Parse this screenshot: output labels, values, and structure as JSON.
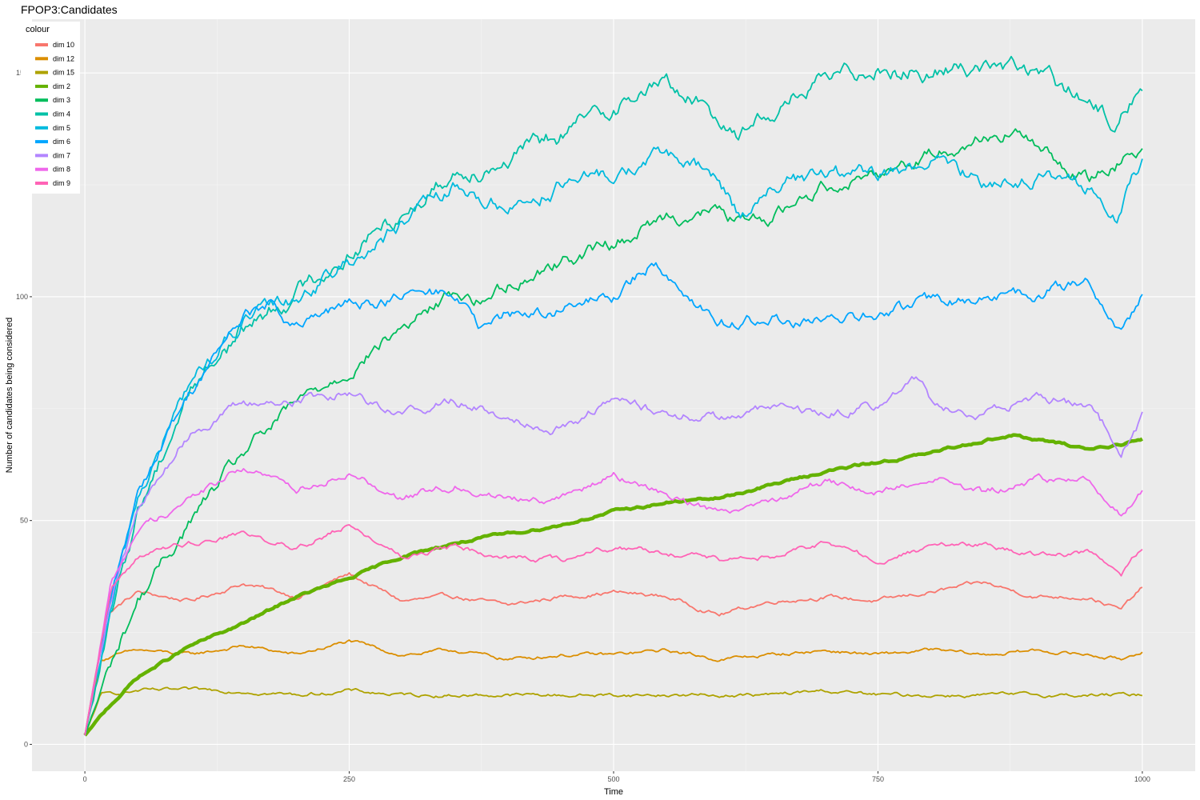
{
  "chart_data": {
    "type": "line",
    "title": "FPOP3:Candidates",
    "xlabel": "Time",
    "ylabel": "Number of candidates being considered",
    "xlim": [
      -50,
      1050
    ],
    "ylim": [
      -6,
      162
    ],
    "x_ticks": [
      0,
      250,
      500,
      750,
      1000
    ],
    "x_tick_labels": [
      "0",
      "250",
      "500",
      "750",
      "1000"
    ],
    "y_ticks": [
      0,
      50,
      100,
      150
    ],
    "y_tick_labels": [
      "0",
      "50",
      "100",
      "150"
    ],
    "grid": true,
    "legend": {
      "title": "colour",
      "position": "top-left"
    },
    "series": [
      {
        "name": "dim 10",
        "color": "#F8766D",
        "x": [
          0,
          20,
          50,
          100,
          150,
          200,
          250,
          300,
          350,
          400,
          450,
          500,
          550,
          600,
          650,
          700,
          750,
          800,
          850,
          900,
          950,
          980,
          1000
        ],
        "y": [
          2,
          29,
          34,
          32,
          36,
          33,
          38,
          32,
          33,
          31,
          33,
          34,
          33,
          29,
          32,
          33,
          32,
          34,
          36,
          33,
          33,
          30,
          35
        ]
      },
      {
        "name": "dim 12",
        "color": "#DB8E00",
        "x": [
          0,
          15,
          50,
          100,
          150,
          200,
          250,
          300,
          350,
          400,
          450,
          500,
          550,
          600,
          650,
          700,
          750,
          800,
          850,
          900,
          950,
          980,
          1000
        ],
        "y": [
          2,
          19,
          21,
          20,
          22,
          20,
          23,
          20,
          21,
          19,
          20,
          20,
          21,
          19,
          20,
          21,
          20,
          21,
          20,
          21,
          20,
          19,
          21
        ]
      },
      {
        "name": "dim 15",
        "color": "#AEA200",
        "x": [
          0,
          15,
          50,
          100,
          150,
          200,
          250,
          300,
          350,
          400,
          450,
          500,
          550,
          600,
          650,
          700,
          750,
          800,
          850,
          900,
          950,
          980,
          1000
        ],
        "y": [
          2,
          11,
          12,
          12,
          12,
          11,
          12,
          11,
          11,
          11,
          11,
          11,
          11,
          11,
          11,
          12,
          11,
          11,
          11,
          11,
          11,
          11,
          11
        ]
      },
      {
        "name": "dim 2",
        "color": "#64B200",
        "thick": true,
        "x": [
          0,
          25,
          50,
          100,
          150,
          200,
          250,
          300,
          350,
          400,
          450,
          500,
          550,
          600,
          650,
          700,
          750,
          800,
          850,
          880,
          900,
          950,
          1000
        ],
        "y": [
          2,
          9,
          15,
          22,
          27,
          33,
          37,
          42,
          45,
          47,
          49,
          52,
          54,
          55,
          58,
          61,
          63,
          65,
          68,
          69,
          68,
          66,
          68
        ]
      },
      {
        "name": "dim 3",
        "color": "#00BD5C",
        "x": [
          0,
          25,
          50,
          100,
          150,
          200,
          250,
          300,
          350,
          375,
          400,
          450,
          500,
          550,
          600,
          625,
          650,
          700,
          750,
          800,
          850,
          880,
          900,
          950,
          1000
        ],
        "y": [
          2,
          18,
          32,
          50,
          65,
          76,
          84,
          93,
          101,
          99,
          103,
          108,
          112,
          118,
          119,
          116,
          118,
          125,
          128,
          132,
          136,
          137,
          133,
          126,
          134
        ]
      },
      {
        "name": "dim 4",
        "color": "#00C1A7",
        "x": [
          0,
          25,
          50,
          100,
          150,
          200,
          250,
          300,
          350,
          400,
          450,
          500,
          550,
          600,
          620,
          650,
          700,
          750,
          800,
          850,
          900,
          950,
          970,
          1000
        ],
        "y": [
          2,
          28,
          52,
          80,
          93,
          101,
          110,
          119,
          128,
          131,
          136,
          143,
          148,
          140,
          137,
          142,
          148,
          152,
          150,
          152,
          150,
          143,
          139,
          147
        ]
      },
      {
        "name": "dim 5",
        "color": "#00BADE",
        "x": [
          0,
          25,
          50,
          100,
          150,
          200,
          250,
          300,
          350,
          400,
          450,
          500,
          550,
          600,
          620,
          650,
          700,
          750,
          800,
          850,
          900,
          950,
          975,
          1000
        ],
        "y": [
          2,
          30,
          55,
          81,
          94,
          100,
          108,
          116,
          124,
          120,
          125,
          127,
          132,
          126,
          118,
          125,
          127,
          127,
          130,
          126,
          127,
          124,
          118,
          130
        ]
      },
      {
        "name": "dim 6",
        "color": "#00A6FF",
        "x": [
          0,
          25,
          50,
          100,
          150,
          175,
          200,
          250,
          300,
          350,
          375,
          400,
          450,
          500,
          540,
          600,
          650,
          700,
          750,
          800,
          850,
          900,
          950,
          980,
          1000
        ],
        "y": [
          2,
          32,
          57,
          79,
          96,
          98,
          93,
          98,
          100,
          101,
          92,
          96,
          97,
          100,
          108,
          94,
          95,
          94,
          96,
          99,
          99,
          101,
          103,
          92,
          101
        ]
      },
      {
        "name": "dim 7",
        "color": "#B385FF",
        "x": [
          0,
          25,
          50,
          100,
          150,
          200,
          250,
          300,
          350,
          400,
          450,
          500,
          550,
          600,
          650,
          700,
          750,
          790,
          800,
          850,
          900,
          950,
          980,
          1000
        ],
        "y": [
          2,
          34,
          52,
          70,
          76,
          77,
          79,
          74,
          77,
          73,
          71,
          77,
          74,
          73,
          75,
          74,
          76,
          82,
          77,
          73,
          78,
          75,
          66,
          73
        ]
      },
      {
        "name": "dim 8",
        "color": "#EF67EB",
        "x": [
          0,
          25,
          50,
          100,
          150,
          200,
          250,
          300,
          350,
          400,
          450,
          500,
          550,
          600,
          650,
          700,
          750,
          800,
          850,
          900,
          950,
          980,
          1000
        ],
        "y": [
          2,
          36,
          48,
          55,
          62,
          57,
          61,
          55,
          58,
          55,
          55,
          60,
          56,
          52,
          55,
          59,
          56,
          60,
          56,
          59,
          59,
          51,
          57
        ]
      },
      {
        "name": "dim 9",
        "color": "#FF63B6",
        "x": [
          0,
          25,
          50,
          100,
          150,
          200,
          250,
          300,
          350,
          400,
          450,
          500,
          550,
          600,
          650,
          700,
          750,
          800,
          850,
          900,
          950,
          980,
          1000
        ],
        "y": [
          2,
          35,
          42,
          45,
          47,
          44,
          49,
          42,
          44,
          42,
          41,
          44,
          43,
          41,
          42,
          45,
          41,
          44,
          45,
          42,
          43,
          38,
          44
        ]
      }
    ]
  }
}
